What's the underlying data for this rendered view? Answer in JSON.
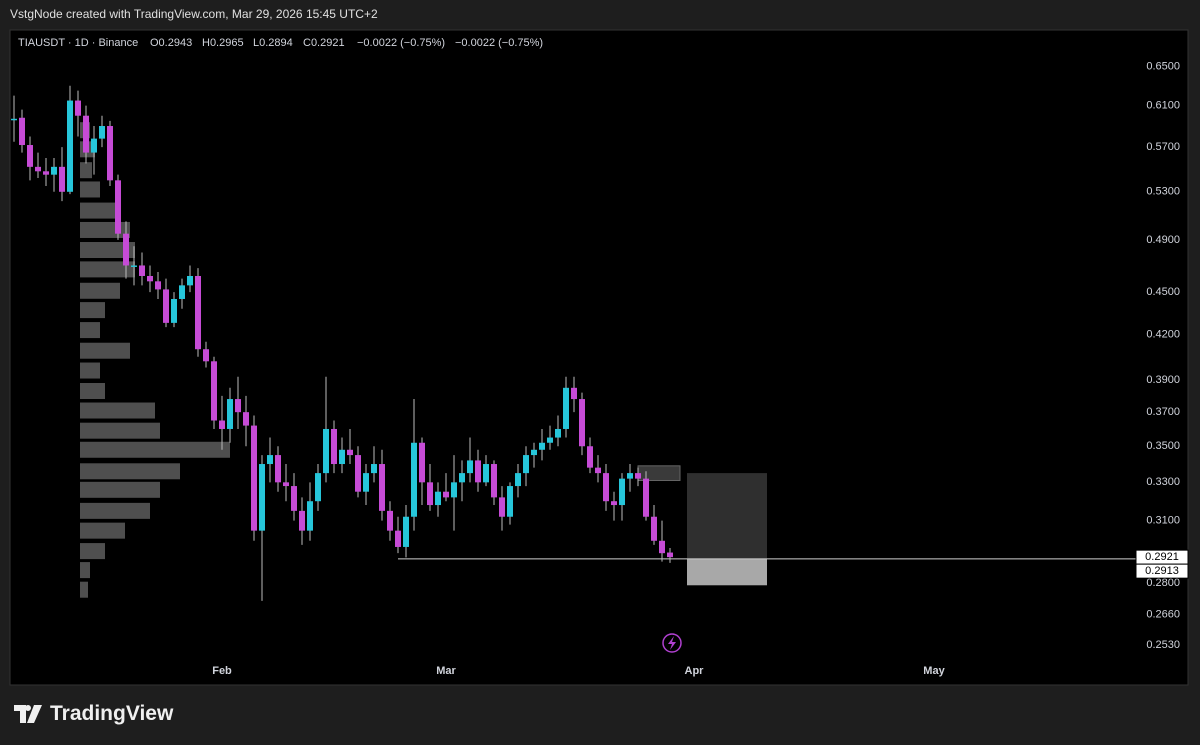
{
  "header": {
    "credit": "VstgNode created with TradingView.com, Mar 29, 2026 15:45 UTC+2",
    "symbol": "TIAUSDT · 1D · Binance",
    "ohlc": [
      "O0.2943",
      "H0.2965",
      "L0.2894",
      "C0.2921"
    ],
    "change": [
      "−0.0022 (−0.75%)",
      "−0.0022 (−0.75%)"
    ]
  },
  "footer": {
    "logo": "TradingView"
  },
  "chart_data": {
    "type": "candlestick",
    "log_scale": true,
    "grid": false,
    "up_color": "#26c6da",
    "down_color": "#c64bd6",
    "categories": [
      null,
      null,
      null,
      null,
      null,
      null,
      null,
      null,
      null,
      null,
      null,
      null,
      null,
      null,
      null,
      null,
      null,
      null,
      null,
      null,
      null,
      null,
      null,
      null,
      null,
      null,
      "Feb",
      null,
      null,
      null,
      null,
      null,
      null,
      null,
      null,
      null,
      null,
      null,
      null,
      null,
      null,
      null,
      null,
      null,
      null,
      null,
      null,
      null,
      null,
      null,
      null,
      null,
      null,
      null,
      "Mar",
      null,
      null,
      null,
      null,
      null,
      null,
      null,
      null,
      null,
      null,
      null,
      null,
      null,
      null,
      null,
      null,
      null,
      null,
      null,
      null,
      null,
      null,
      null,
      null,
      null,
      null,
      null,
      null,
      null,
      null,
      "Apr",
      null,
      null,
      null,
      null,
      null,
      null,
      null,
      null,
      null,
      null,
      null,
      null,
      null,
      null,
      null,
      null,
      null,
      null,
      null,
      null,
      null,
      null,
      null,
      null,
      null,
      null,
      null,
      null,
      null,
      "May",
      null,
      null,
      null,
      null,
      null,
      null,
      null,
      null,
      null,
      null,
      null,
      null,
      null,
      null,
      null,
      null,
      null,
      null,
      null,
      null,
      null,
      null
    ],
    "open": [
      0.596,
      0.598,
      0.572,
      0.552,
      0.548,
      0.545,
      0.552,
      0.53,
      0.615,
      0.6,
      0.565,
      0.578,
      0.59,
      0.54,
      0.495,
      0.47,
      0.47,
      0.462,
      0.458,
      0.452,
      0.428,
      0.445,
      0.455,
      0.462,
      0.41,
      0.402,
      0.365,
      0.36,
      0.378,
      0.37,
      0.362,
      0.305,
      0.34,
      0.345,
      0.33,
      0.328,
      0.315,
      0.305,
      0.32,
      0.335,
      0.36,
      0.34,
      0.348,
      0.345,
      0.325,
      0.335,
      0.34,
      0.315,
      0.305,
      0.297,
      0.312,
      0.352,
      0.33,
      0.318,
      0.325,
      0.322,
      0.33,
      0.335,
      0.342,
      0.33,
      0.34,
      0.322,
      0.312,
      0.328,
      0.335,
      0.345,
      0.348,
      0.352,
      0.355,
      0.36,
      0.385,
      0.378,
      0.35,
      0.338,
      0.335,
      0.32,
      0.318,
      0.332,
      0.335,
      0.332,
      0.312,
      0.3,
      0.2943,
      null,
      null,
      null,
      null,
      null,
      null,
      null,
      null,
      null,
      null,
      null,
      null,
      null,
      null,
      null,
      null,
      null,
      null,
      null,
      null,
      null,
      null,
      null,
      null,
      null,
      null,
      null,
      null,
      null,
      null,
      null,
      null,
      null,
      null,
      null,
      null,
      null,
      null,
      null,
      null,
      null,
      null,
      null,
      null,
      null,
      null,
      null,
      null,
      null,
      null,
      null,
      null,
      null,
      null,
      null
    ],
    "high": [
      0.62,
      0.606,
      0.58,
      0.565,
      0.56,
      0.56,
      0.57,
      0.63,
      0.625,
      0.61,
      0.59,
      0.6,
      0.595,
      0.545,
      0.505,
      0.485,
      0.48,
      0.47,
      0.465,
      0.46,
      0.45,
      0.46,
      0.47,
      0.468,
      0.415,
      0.405,
      0.38,
      0.385,
      0.392,
      0.38,
      0.368,
      0.345,
      0.355,
      0.35,
      0.34,
      0.335,
      0.322,
      0.33,
      0.34,
      0.392,
      0.365,
      0.355,
      0.36,
      0.35,
      0.34,
      0.35,
      0.348,
      0.32,
      0.312,
      0.318,
      0.378,
      0.355,
      0.34,
      0.33,
      0.335,
      0.345,
      0.342,
      0.355,
      0.348,
      0.345,
      0.342,
      0.328,
      0.33,
      0.34,
      0.35,
      0.352,
      0.36,
      0.362,
      0.368,
      0.392,
      0.392,
      0.382,
      0.355,
      0.345,
      0.34,
      0.325,
      0.335,
      0.34,
      0.338,
      0.336,
      0.318,
      0.31,
      0.2965,
      null,
      null,
      null,
      null,
      null,
      null,
      null,
      null,
      null,
      null,
      null,
      null,
      null,
      null,
      null,
      null,
      null,
      null,
      null,
      null,
      null,
      null,
      null,
      null,
      null,
      null,
      null,
      null,
      null,
      null,
      null,
      null,
      null,
      null,
      null,
      null,
      null,
      null,
      null,
      null,
      null,
      null,
      null,
      null,
      null,
      null,
      null,
      null,
      null,
      null,
      null,
      null,
      null,
      null,
      null
    ],
    "low": [
      0.575,
      0.565,
      0.54,
      0.542,
      0.535,
      0.53,
      0.522,
      0.528,
      0.58,
      0.555,
      0.545,
      0.57,
      0.535,
      0.49,
      0.46,
      0.455,
      0.455,
      0.45,
      0.445,
      0.425,
      0.425,
      0.438,
      0.45,
      0.405,
      0.398,
      0.36,
      0.348,
      0.352,
      0.36,
      0.35,
      0.3,
      0.272,
      0.33,
      0.325,
      0.32,
      0.31,
      0.298,
      0.3,
      0.315,
      0.33,
      0.335,
      0.335,
      0.34,
      0.322,
      0.318,
      0.33,
      0.31,
      0.3,
      0.294,
      0.292,
      0.305,
      0.318,
      0.315,
      0.312,
      0.32,
      0.305,
      0.32,
      0.33,
      0.325,
      0.328,
      0.318,
      0.305,
      0.308,
      0.322,
      0.328,
      0.338,
      0.342,
      0.348,
      0.35,
      0.355,
      0.37,
      0.345,
      0.335,
      0.33,
      0.315,
      0.31,
      0.31,
      0.325,
      0.328,
      0.31,
      0.298,
      0.29,
      0.2894,
      null,
      null,
      null,
      null,
      null,
      null,
      null,
      null,
      null,
      null,
      null,
      null,
      null,
      null,
      null,
      null,
      null,
      null,
      null,
      null,
      null,
      null,
      null,
      null,
      null,
      null,
      null,
      null,
      null,
      null,
      null,
      null,
      null,
      null,
      null,
      null,
      null,
      null,
      null,
      null,
      null,
      null,
      null,
      null,
      null,
      null,
      null,
      null,
      null,
      null,
      null,
      null,
      null,
      null,
      null
    ],
    "close": [
      0.597,
      0.572,
      0.552,
      0.548,
      0.545,
      0.552,
      0.53,
      0.615,
      0.6,
      0.565,
      0.578,
      0.59,
      0.54,
      0.495,
      0.47,
      0.47,
      0.462,
      0.458,
      0.452,
      0.428,
      0.445,
      0.455,
      0.462,
      0.41,
      0.402,
      0.365,
      0.36,
      0.378,
      0.37,
      0.362,
      0.305,
      0.34,
      0.345,
      0.33,
      0.328,
      0.315,
      0.305,
      0.32,
      0.335,
      0.36,
      0.34,
      0.348,
      0.345,
      0.325,
      0.335,
      0.34,
      0.315,
      0.305,
      0.297,
      0.312,
      0.352,
      0.33,
      0.318,
      0.325,
      0.322,
      0.33,
      0.335,
      0.342,
      0.33,
      0.34,
      0.322,
      0.312,
      0.328,
      0.335,
      0.345,
      0.348,
      0.352,
      0.355,
      0.36,
      0.385,
      0.378,
      0.35,
      0.338,
      0.335,
      0.32,
      0.318,
      0.332,
      0.335,
      0.332,
      0.312,
      0.3,
      0.294,
      0.2921,
      null,
      null,
      null,
      null,
      null,
      null,
      null,
      null,
      null,
      null,
      null,
      null,
      null,
      null,
      null,
      null,
      null,
      null,
      null,
      null,
      null,
      null,
      null,
      null,
      null,
      null,
      null,
      null,
      null,
      null,
      null,
      null,
      null,
      null,
      null,
      null,
      null,
      null,
      null,
      null,
      null,
      null,
      null,
      null,
      null,
      null,
      null,
      null,
      null,
      null,
      null,
      null,
      null,
      null,
      null
    ],
    "ylim": [
      0.247,
      0.69
    ],
    "yticks": [
      {
        "value": 0.65,
        "label": "0.6500"
      },
      {
        "value": 0.61,
        "label": "0.6100"
      },
      {
        "value": 0.57,
        "label": "0.5700"
      },
      {
        "value": 0.53,
        "label": "0.5300"
      },
      {
        "value": 0.49,
        "label": "0.4900"
      },
      {
        "value": 0.45,
        "label": "0.4500"
      },
      {
        "value": 0.42,
        "label": "0.4200"
      },
      {
        "value": 0.39,
        "label": "0.3900"
      },
      {
        "value": 0.37,
        "label": "0.3700"
      },
      {
        "value": 0.35,
        "label": "0.3500"
      },
      {
        "value": 0.33,
        "label": "0.3300"
      },
      {
        "value": 0.31,
        "label": "0.3100"
      },
      {
        "value": 0.28,
        "label": "0.2800"
      },
      {
        "value": 0.266,
        "label": "0.2660"
      },
      {
        "value": 0.253,
        "label": "0.2530"
      }
    ],
    "last_price": 0.2921,
    "line_price": 0.2913,
    "position": {
      "target": 0.335,
      "entry": 0.2913,
      "stop": 0.279
    },
    "zone": [
      0.331,
      0.339
    ],
    "volume_profile": {
      "levels": [
        0.586,
        0.568,
        0.549,
        0.532,
        0.514,
        0.498,
        0.482,
        0.467,
        0.451,
        0.437,
        0.423,
        0.409,
        0.396,
        0.383,
        0.371,
        0.359,
        0.348,
        0.336,
        0.326,
        0.315,
        0.305,
        0.295,
        0.286,
        0.277
      ],
      "volumes": [
        10,
        15,
        12,
        20,
        35,
        50,
        55,
        55,
        40,
        25,
        20,
        50,
        20,
        25,
        75,
        80,
        150,
        100,
        80,
        70,
        45,
        25,
        10,
        8
      ]
    }
  }
}
